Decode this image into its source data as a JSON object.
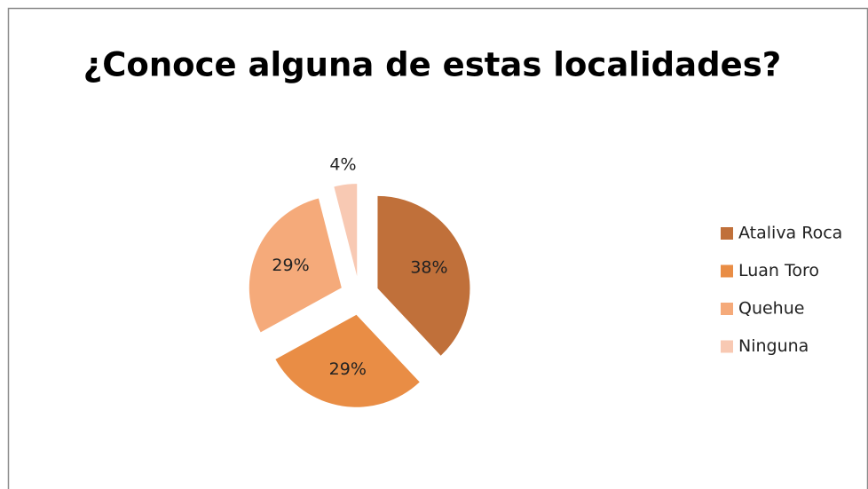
{
  "chart_data": {
    "type": "pie",
    "title": "¿Conoce alguna de estas localidades?",
    "categories": [
      "Ataliva Roca",
      "Luan Toro",
      "Quehue",
      "Ninguna"
    ],
    "values": [
      38,
      29,
      29,
      4
    ],
    "value_labels": [
      "38%",
      "29%",
      "29%",
      "4%"
    ],
    "colors": [
      "#c0703a",
      "#e98d45",
      "#f5aa7a",
      "#f8c9b3"
    ],
    "exploded": true,
    "legend": "right"
  }
}
